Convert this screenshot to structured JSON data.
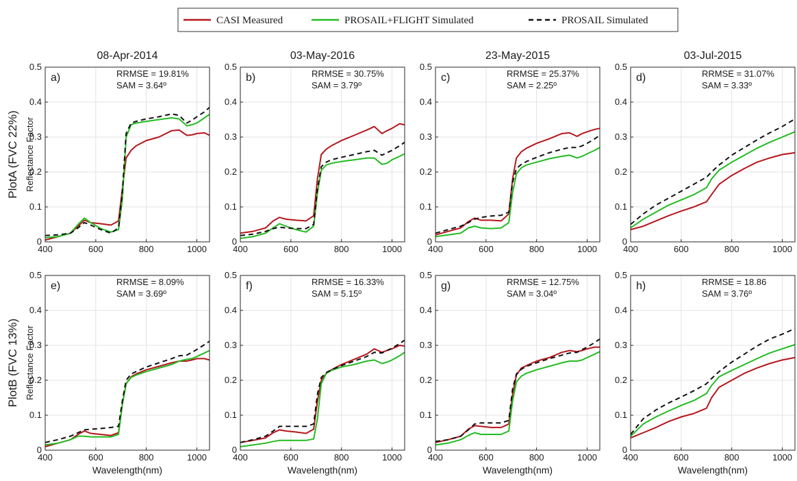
{
  "colors": {
    "measured": "#b5161c",
    "flight": "#22bb22",
    "prosail": "#111111"
  },
  "legend": [
    {
      "key": "measured",
      "label": "CASI Measured",
      "dash": ""
    },
    {
      "key": "flight",
      "label": "PROSAIL+FLIGHT Simulated",
      "dash": ""
    },
    {
      "key": "prosail",
      "label": "PROSAIL Simulated",
      "dash": "7,5"
    }
  ],
  "column_titles": [
    "08-Apr-2014",
    "03-May-2016",
    "23-May-2015",
    "03-Jul-2015"
  ],
  "row_titles": [
    "PlotA (FVC 22%)",
    "PlotB (FVC 13%)"
  ],
  "ylabel": "Reflectance Factor",
  "xlabel": "Wavelength(nm)",
  "chart_data": [
    {
      "type": "line",
      "panel": "a)",
      "xlim": [
        400,
        1050
      ],
      "ylim": [
        0,
        0.5
      ],
      "xticks": [
        400,
        600,
        800,
        1000
      ],
      "yticks": [
        0,
        0.1,
        0.2,
        0.3,
        0.4,
        0.5
      ],
      "grid": true,
      "rrmse": "RRMSE = 19.81%",
      "sam": "SAM = 3.64º",
      "x": [
        400,
        450,
        500,
        530,
        555,
        580,
        620,
        660,
        690,
        705,
        720,
        740,
        760,
        800,
        850,
        900,
        930,
        960,
        980,
        1000,
        1030,
        1050
      ],
      "series": [
        {
          "key": "measured",
          "values": [
            0.005,
            0.015,
            0.025,
            0.045,
            0.062,
            0.055,
            0.052,
            0.048,
            0.06,
            0.15,
            0.24,
            0.262,
            0.275,
            0.29,
            0.3,
            0.318,
            0.32,
            0.305,
            0.306,
            0.31,
            0.312,
            0.305
          ]
        },
        {
          "key": "flight",
          "values": [
            0.012,
            0.015,
            0.025,
            0.05,
            0.068,
            0.055,
            0.038,
            0.028,
            0.035,
            0.12,
            0.3,
            0.335,
            0.34,
            0.345,
            0.35,
            0.355,
            0.352,
            0.332,
            0.335,
            0.34,
            0.355,
            0.365
          ]
        },
        {
          "key": "prosail",
          "values": [
            0.018,
            0.02,
            0.025,
            0.04,
            0.055,
            0.048,
            0.035,
            0.025,
            0.04,
            0.14,
            0.31,
            0.34,
            0.345,
            0.352,
            0.358,
            0.366,
            0.362,
            0.34,
            0.348,
            0.358,
            0.372,
            0.385
          ]
        }
      ]
    },
    {
      "type": "line",
      "panel": "b)",
      "xlim": [
        400,
        1050
      ],
      "ylim": [
        0,
        0.5
      ],
      "xticks": [
        400,
        600,
        800,
        1000
      ],
      "yticks": [
        0,
        0.1,
        0.2,
        0.3,
        0.4,
        0.5
      ],
      "grid": true,
      "rrmse": "RRMSE = 30.75%",
      "sam": "SAM = 3.79º",
      "x": [
        400,
        450,
        500,
        530,
        555,
        580,
        620,
        660,
        690,
        705,
        720,
        740,
        760,
        800,
        850,
        900,
        930,
        960,
        980,
        1000,
        1030,
        1050
      ],
      "series": [
        {
          "key": "measured",
          "values": [
            0.025,
            0.03,
            0.04,
            0.06,
            0.07,
            0.065,
            0.062,
            0.06,
            0.075,
            0.18,
            0.25,
            0.265,
            0.275,
            0.29,
            0.305,
            0.32,
            0.33,
            0.31,
            0.318,
            0.325,
            0.338,
            0.335
          ]
        },
        {
          "key": "flight",
          "values": [
            0.01,
            0.015,
            0.025,
            0.04,
            0.052,
            0.045,
            0.035,
            0.028,
            0.045,
            0.14,
            0.205,
            0.22,
            0.225,
            0.23,
            0.235,
            0.24,
            0.24,
            0.222,
            0.225,
            0.235,
            0.245,
            0.252
          ]
        },
        {
          "key": "prosail",
          "values": [
            0.018,
            0.022,
            0.03,
            0.038,
            0.042,
            0.04,
            0.038,
            0.038,
            0.05,
            0.15,
            0.215,
            0.228,
            0.235,
            0.242,
            0.25,
            0.258,
            0.262,
            0.248,
            0.255,
            0.262,
            0.275,
            0.285
          ]
        }
      ]
    },
    {
      "type": "line",
      "panel": "c)",
      "xlim": [
        400,
        1050
      ],
      "ylim": [
        0,
        0.5
      ],
      "xticks": [
        400,
        600,
        800,
        1000
      ],
      "yticks": [
        0,
        0.1,
        0.2,
        0.3,
        0.4,
        0.5
      ],
      "grid": true,
      "rrmse": "RRMSE = 25.37%",
      "sam": "SAM = 2.25º",
      "x": [
        400,
        450,
        500,
        530,
        555,
        580,
        620,
        660,
        690,
        705,
        720,
        740,
        760,
        800,
        850,
        900,
        930,
        960,
        980,
        1000,
        1030,
        1050
      ],
      "series": [
        {
          "key": "measured",
          "values": [
            0.02,
            0.03,
            0.04,
            0.058,
            0.068,
            0.062,
            0.062,
            0.06,
            0.08,
            0.18,
            0.24,
            0.258,
            0.268,
            0.282,
            0.295,
            0.31,
            0.312,
            0.302,
            0.31,
            0.315,
            0.322,
            0.325
          ]
        },
        {
          "key": "flight",
          "values": [
            0.015,
            0.02,
            0.025,
            0.04,
            0.045,
            0.04,
            0.038,
            0.04,
            0.055,
            0.14,
            0.195,
            0.212,
            0.22,
            0.228,
            0.238,
            0.245,
            0.248,
            0.24,
            0.245,
            0.252,
            0.262,
            0.27
          ]
        },
        {
          "key": "prosail",
          "values": [
            0.025,
            0.035,
            0.045,
            0.055,
            0.065,
            0.07,
            0.074,
            0.076,
            0.085,
            0.17,
            0.21,
            0.222,
            0.23,
            0.242,
            0.255,
            0.265,
            0.27,
            0.27,
            0.275,
            0.282,
            0.295,
            0.305
          ]
        }
      ]
    },
    {
      "type": "line",
      "panel": "d)",
      "xlim": [
        400,
        1050
      ],
      "ylim": [
        0,
        0.5
      ],
      "xticks": [
        400,
        600,
        800,
        1000
      ],
      "yticks": [
        0,
        0.1,
        0.2,
        0.3,
        0.4,
        0.5
      ],
      "grid": true,
      "rrmse": "RRMSE = 31.07%",
      "sam": "SAM = 3.33º",
      "x": [
        400,
        450,
        500,
        550,
        600,
        650,
        700,
        720,
        750,
        800,
        850,
        900,
        950,
        1000,
        1050
      ],
      "series": [
        {
          "key": "measured",
          "values": [
            0.035,
            0.045,
            0.06,
            0.075,
            0.088,
            0.1,
            0.115,
            0.135,
            0.165,
            0.19,
            0.21,
            0.228,
            0.24,
            0.25,
            0.255
          ]
        },
        {
          "key": "flight",
          "values": [
            0.04,
            0.065,
            0.085,
            0.105,
            0.12,
            0.135,
            0.155,
            0.18,
            0.205,
            0.228,
            0.248,
            0.268,
            0.285,
            0.3,
            0.315
          ]
        },
        {
          "key": "prosail",
          "values": [
            0.05,
            0.08,
            0.105,
            0.125,
            0.145,
            0.165,
            0.185,
            0.2,
            0.22,
            0.248,
            0.27,
            0.292,
            0.312,
            0.33,
            0.352
          ]
        }
      ]
    },
    {
      "type": "line",
      "panel": "e)",
      "xlim": [
        400,
        1050
      ],
      "ylim": [
        0,
        0.5
      ],
      "xticks": [
        400,
        600,
        800,
        1000
      ],
      "yticks": [
        0,
        0.1,
        0.2,
        0.3,
        0.4,
        0.5
      ],
      "grid": true,
      "rrmse": "RRMSE = 8.09%",
      "sam": "SAM = 3.69º",
      "x": [
        400,
        450,
        500,
        530,
        555,
        580,
        620,
        660,
        690,
        705,
        720,
        740,
        760,
        800,
        850,
        900,
        930,
        960,
        980,
        1000,
        1030,
        1050
      ],
      "series": [
        {
          "key": "measured",
          "values": [
            0.01,
            0.02,
            0.03,
            0.045,
            0.055,
            0.048,
            0.045,
            0.042,
            0.05,
            0.13,
            0.19,
            0.21,
            0.218,
            0.23,
            0.24,
            0.25,
            0.255,
            0.255,
            0.258,
            0.262,
            0.262,
            0.258
          ]
        },
        {
          "key": "flight",
          "values": [
            0.015,
            0.02,
            0.03,
            0.04,
            0.04,
            0.038,
            0.038,
            0.038,
            0.045,
            0.13,
            0.19,
            0.208,
            0.215,
            0.225,
            0.235,
            0.245,
            0.255,
            0.26,
            0.262,
            0.268,
            0.278,
            0.285
          ]
        },
        {
          "key": "prosail",
          "values": [
            0.022,
            0.03,
            0.04,
            0.05,
            0.058,
            0.06,
            0.062,
            0.065,
            0.068,
            0.14,
            0.2,
            0.218,
            0.225,
            0.238,
            0.25,
            0.262,
            0.27,
            0.272,
            0.28,
            0.288,
            0.302,
            0.312
          ]
        }
      ]
    },
    {
      "type": "line",
      "panel": "f)",
      "xlim": [
        400,
        1050
      ],
      "ylim": [
        0,
        0.5
      ],
      "xticks": [
        400,
        600,
        800,
        1000
      ],
      "yticks": [
        0,
        0.1,
        0.2,
        0.3,
        0.4,
        0.5
      ],
      "grid": true,
      "rrmse": "RRMSE = 16.33%",
      "sam": "SAM = 5.15º",
      "x": [
        400,
        450,
        500,
        530,
        555,
        580,
        620,
        660,
        690,
        705,
        720,
        740,
        760,
        800,
        850,
        900,
        930,
        960,
        980,
        1000,
        1030,
        1050
      ],
      "series": [
        {
          "key": "measured",
          "values": [
            0.022,
            0.028,
            0.035,
            0.05,
            0.058,
            0.055,
            0.052,
            0.048,
            0.06,
            0.14,
            0.2,
            0.22,
            0.23,
            0.245,
            0.26,
            0.275,
            0.29,
            0.28,
            0.285,
            0.29,
            0.3,
            0.298
          ]
        },
        {
          "key": "flight",
          "values": [
            0.01,
            0.015,
            0.02,
            0.025,
            0.028,
            0.028,
            0.028,
            0.028,
            0.032,
            0.09,
            0.19,
            0.22,
            0.228,
            0.238,
            0.245,
            0.255,
            0.258,
            0.248,
            0.252,
            0.258,
            0.27,
            0.28
          ]
        },
        {
          "key": "prosail",
          "values": [
            0.022,
            0.03,
            0.04,
            0.055,
            0.068,
            0.068,
            0.068,
            0.068,
            0.075,
            0.16,
            0.208,
            0.222,
            0.23,
            0.242,
            0.255,
            0.268,
            0.28,
            0.278,
            0.285,
            0.292,
            0.305,
            0.315
          ]
        }
      ]
    },
    {
      "type": "line",
      "panel": "g)",
      "xlim": [
        400,
        1050
      ],
      "ylim": [
        0,
        0.5
      ],
      "xticks": [
        400,
        600,
        800,
        1000
      ],
      "yticks": [
        0,
        0.1,
        0.2,
        0.3,
        0.4,
        0.5
      ],
      "grid": true,
      "rrmse": "RRMSE = 12.75%",
      "sam": "SAM = 3.04º",
      "x": [
        400,
        450,
        500,
        530,
        555,
        580,
        620,
        660,
        690,
        705,
        720,
        740,
        760,
        800,
        850,
        900,
        930,
        960,
        980,
        1000,
        1030,
        1050
      ],
      "series": [
        {
          "key": "measured",
          "values": [
            0.022,
            0.03,
            0.04,
            0.06,
            0.07,
            0.068,
            0.065,
            0.065,
            0.075,
            0.16,
            0.215,
            0.235,
            0.242,
            0.255,
            0.265,
            0.28,
            0.285,
            0.282,
            0.285,
            0.29,
            0.295,
            0.295
          ]
        },
        {
          "key": "flight",
          "values": [
            0.015,
            0.02,
            0.03,
            0.042,
            0.05,
            0.045,
            0.045,
            0.045,
            0.055,
            0.14,
            0.195,
            0.212,
            0.22,
            0.23,
            0.24,
            0.25,
            0.255,
            0.255,
            0.258,
            0.265,
            0.275,
            0.282
          ]
        },
        {
          "key": "prosail",
          "values": [
            0.025,
            0.03,
            0.04,
            0.058,
            0.075,
            0.078,
            0.078,
            0.078,
            0.085,
            0.175,
            0.218,
            0.232,
            0.24,
            0.25,
            0.262,
            0.272,
            0.278,
            0.28,
            0.288,
            0.295,
            0.308,
            0.318
          ]
        }
      ]
    },
    {
      "type": "line",
      "panel": "h)",
      "xlim": [
        400,
        1050
      ],
      "ylim": [
        0,
        0.5
      ],
      "xticks": [
        400,
        600,
        800,
        1000
      ],
      "yticks": [
        0,
        0.1,
        0.2,
        0.3,
        0.4,
        0.5
      ],
      "grid": true,
      "rrmse": "RRMSE = 18.86",
      "sam": "SAM = 3.76º",
      "x": [
        400,
        450,
        500,
        550,
        600,
        650,
        700,
        720,
        750,
        800,
        850,
        900,
        950,
        1000,
        1050
      ],
      "series": [
        {
          "key": "measured",
          "values": [
            0.035,
            0.05,
            0.065,
            0.082,
            0.095,
            0.105,
            0.12,
            0.15,
            0.18,
            0.2,
            0.22,
            0.235,
            0.248,
            0.258,
            0.265
          ]
        },
        {
          "key": "flight",
          "values": [
            0.04,
            0.075,
            0.095,
            0.112,
            0.128,
            0.142,
            0.162,
            0.185,
            0.21,
            0.228,
            0.245,
            0.262,
            0.278,
            0.29,
            0.302
          ]
        },
        {
          "key": "prosail",
          "values": [
            0.045,
            0.09,
            0.115,
            0.135,
            0.152,
            0.17,
            0.19,
            0.205,
            0.225,
            0.252,
            0.275,
            0.298,
            0.318,
            0.332,
            0.348
          ]
        }
      ]
    }
  ]
}
